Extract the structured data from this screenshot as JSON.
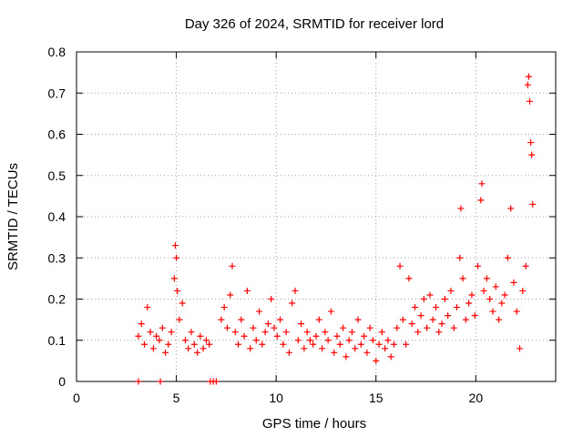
{
  "chart_data": {
    "type": "scatter",
    "title": "Day 326 of 2024, SRMTID for receiver lord",
    "xlabel": "GPS time / hours",
    "ylabel": "SRMTID / TECUs",
    "xlim": [
      0,
      24
    ],
    "ylim": [
      0,
      0.8
    ],
    "xticks": [
      0,
      5,
      10,
      15,
      20
    ],
    "xtick_labels": [
      "0",
      "5",
      "10",
      "15",
      "20"
    ],
    "yticks": [
      0,
      0.1,
      0.2,
      0.3,
      0.4,
      0.5,
      0.6,
      0.7,
      0.8
    ],
    "ytick_labels": [
      "0",
      "0.1",
      "0.2",
      "0.3",
      "0.4",
      "0.5",
      "0.6",
      "0.7",
      "0.8"
    ],
    "grid": true,
    "marker": "plus",
    "series": [
      {
        "name": "SRMTID",
        "color": "#ff0000",
        "x": [
          3.1,
          3.25,
          3.4,
          3.55,
          3.7,
          3.85,
          4.0,
          4.15,
          4.3,
          4.45,
          4.6,
          4.75,
          4.9,
          4.95,
          5.0,
          5.05,
          5.15,
          5.3,
          5.45,
          5.6,
          5.75,
          5.9,
          6.05,
          6.2,
          6.35,
          6.5,
          6.65,
          7.25,
          7.4,
          7.55,
          7.7,
          7.8,
          7.95,
          8.1,
          8.25,
          8.4,
          8.55,
          8.7,
          8.85,
          9.0,
          9.15,
          9.3,
          9.45,
          9.6,
          9.75,
          9.9,
          10.05,
          10.2,
          10.35,
          10.5,
          10.65,
          10.8,
          10.95,
          11.1,
          11.25,
          11.4,
          11.55,
          11.7,
          11.85,
          12.0,
          12.15,
          12.3,
          12.45,
          12.6,
          12.75,
          12.9,
          13.05,
          13.2,
          13.35,
          13.5,
          13.65,
          13.8,
          13.95,
          14.1,
          14.25,
          14.4,
          14.55,
          14.7,
          14.85,
          15.0,
          15.15,
          15.3,
          15.45,
          15.6,
          15.75,
          15.9,
          16.05,
          16.2,
          16.35,
          16.5,
          16.65,
          16.8,
          16.95,
          17.1,
          17.25,
          17.4,
          17.55,
          17.7,
          17.85,
          18.0,
          18.15,
          18.3,
          18.45,
          18.6,
          18.75,
          18.9,
          19.05,
          19.2,
          19.25,
          19.35,
          19.5,
          19.65,
          19.8,
          19.95,
          20.1,
          20.25,
          20.3,
          20.4,
          20.55,
          20.7,
          20.85,
          21.0,
          21.15,
          21.3,
          21.45,
          21.6,
          21.75,
          21.9,
          22.05,
          22.2,
          22.35,
          22.5,
          22.6,
          22.65,
          22.7,
          22.75,
          22.8,
          22.85,
          3.1,
          4.2,
          6.7,
          6.85,
          7.0
        ],
        "y": [
          0.11,
          0.14,
          0.09,
          0.18,
          0.12,
          0.08,
          0.11,
          0.1,
          0.13,
          0.07,
          0.09,
          0.12,
          0.25,
          0.33,
          0.3,
          0.22,
          0.15,
          0.19,
          0.1,
          0.08,
          0.12,
          0.09,
          0.07,
          0.11,
          0.08,
          0.1,
          0.09,
          0.15,
          0.18,
          0.13,
          0.21,
          0.28,
          0.12,
          0.09,
          0.15,
          0.11,
          0.22,
          0.08,
          0.13,
          0.1,
          0.17,
          0.09,
          0.12,
          0.14,
          0.2,
          0.13,
          0.11,
          0.15,
          0.09,
          0.12,
          0.07,
          0.19,
          0.22,
          0.1,
          0.14,
          0.08,
          0.12,
          0.1,
          0.09,
          0.11,
          0.15,
          0.08,
          0.12,
          0.1,
          0.17,
          0.07,
          0.11,
          0.09,
          0.13,
          0.06,
          0.1,
          0.12,
          0.08,
          0.15,
          0.09,
          0.11,
          0.07,
          0.13,
          0.1,
          0.05,
          0.09,
          0.12,
          0.08,
          0.1,
          0.06,
          0.09,
          0.13,
          0.28,
          0.15,
          0.09,
          0.25,
          0.14,
          0.18,
          0.12,
          0.16,
          0.2,
          0.13,
          0.21,
          0.15,
          0.18,
          0.12,
          0.14,
          0.2,
          0.16,
          0.22,
          0.13,
          0.18,
          0.3,
          0.42,
          0.25,
          0.15,
          0.19,
          0.21,
          0.16,
          0.28,
          0.44,
          0.48,
          0.22,
          0.25,
          0.2,
          0.17,
          0.23,
          0.15,
          0.19,
          0.21,
          0.3,
          0.42,
          0.24,
          0.17,
          0.08,
          0.22,
          0.28,
          0.72,
          0.74,
          0.68,
          0.58,
          0.55,
          0.43,
          0,
          0,
          0,
          0,
          0
        ]
      }
    ]
  }
}
